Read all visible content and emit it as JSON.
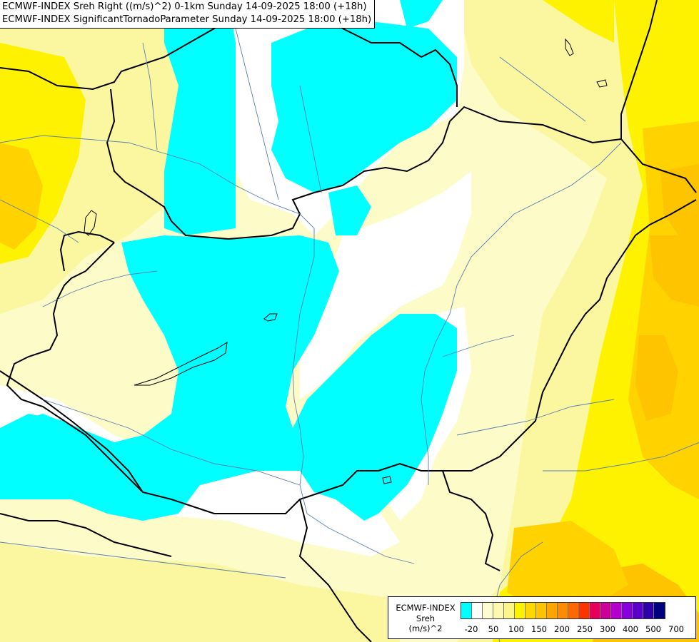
{
  "title": {
    "line1": "ECMWF-INDEX Sreh Right ((m/s)^2) 0-1km Sunday 14-09-2025 18:00 (+18h)",
    "line2": "ECMWF-INDEX SignificantTornadoParameter Sunday 14-09-2025 18:00 (+18h)"
  },
  "legend": {
    "line1": "ECMWF-INDEX",
    "line2": "Sreh",
    "line3": "(m/s)^2",
    "colors": [
      "#00ffff",
      "#ffffff",
      "#fdfdd0",
      "#fdfab0",
      "#fbf68a",
      "#fff200",
      "#ffd700",
      "#ffc400",
      "#ffa500",
      "#ff8c00",
      "#ff6a00",
      "#ff3300",
      "#e6005c",
      "#cc0099",
      "#b300cc",
      "#8800dd",
      "#5a00c8",
      "#2d00a8",
      "#000080"
    ],
    "ticks": [
      "-20",
      "50",
      "100",
      "150",
      "200",
      "250",
      "300",
      "400",
      "500",
      "700"
    ]
  },
  "colors": {
    "cyan": "#00ffff",
    "white": "#ffffff",
    "pale_yellow": "#fdfcc8",
    "light_yellow": "#fbf7a0",
    "yellow": "#fff200",
    "gold": "#ffd200",
    "orange": "#ffc400",
    "border_line": "#000000",
    "river_line": "#5a7fb0"
  }
}
